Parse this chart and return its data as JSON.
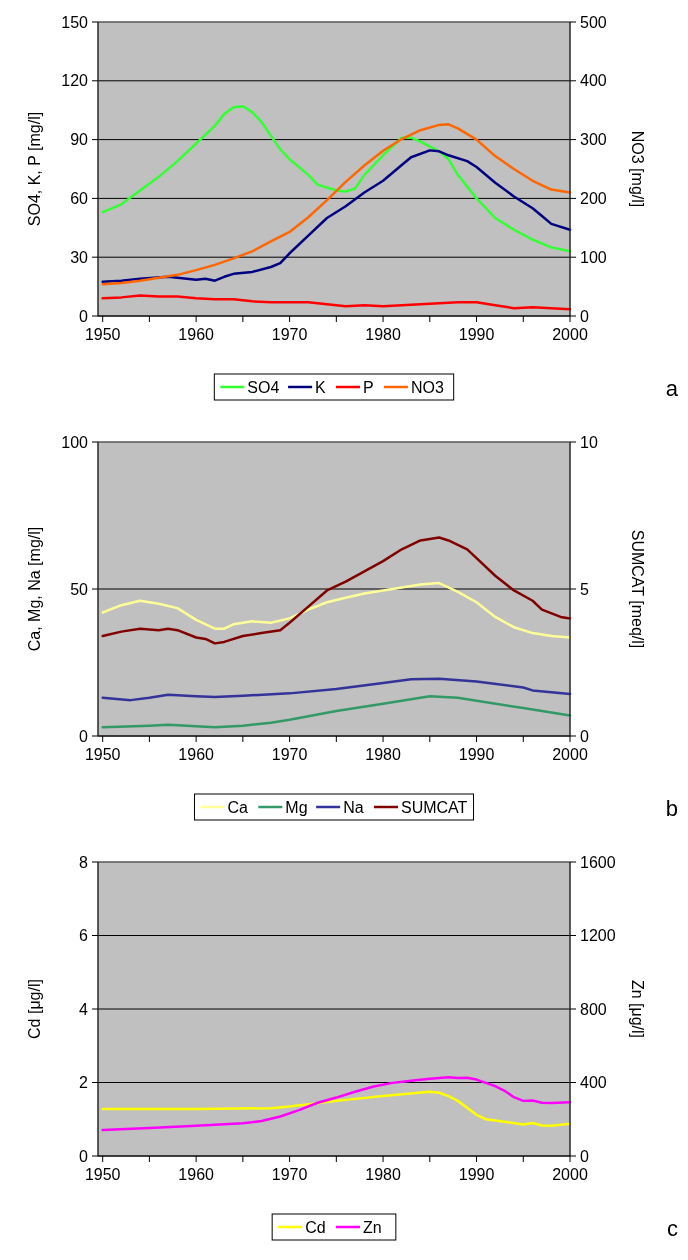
{
  "chart_data": [
    {
      "type": "line",
      "ylabel": "SO4, K, P [mg/l]",
      "y2label": "NO3 [mg/l]",
      "xlim": [
        1949.5,
        2000
      ],
      "xticks": [
        1950,
        {
          "value": 1955,
          "label": null
        },
        1960,
        {
          "value": 1965,
          "label": null
        },
        1970,
        {
          "value": 1975,
          "label": null
        },
        1980,
        {
          "value": 1985,
          "label": null
        },
        1990,
        {
          "value": 1995,
          "label": null
        },
        2000
      ],
      "ylim": [
        0,
        150
      ],
      "yticks": [
        0,
        30,
        60,
        90,
        120,
        150
      ],
      "y2lim": [
        0,
        500
      ],
      "y2ticks": [
        0,
        100,
        200,
        300,
        400,
        500
      ],
      "grid": "y",
      "legend": "bottom",
      "annotations": [
        "a"
      ],
      "series": [
        {
          "name": "SO4",
          "color": "#33ff33",
          "x": [
            1950,
            1952,
            1954,
            1956,
            1958,
            1960,
            1962,
            1963,
            1964,
            1965,
            1966,
            1967,
            1968,
            1969,
            1970,
            1972,
            1973,
            1975,
            1976,
            1977,
            1978,
            1980,
            1982,
            1983,
            1984,
            1986,
            1987,
            1988,
            1990,
            1992,
            1994,
            1996,
            1998,
            2000
          ],
          "values": [
            53,
            57,
            64,
            71,
            79,
            88,
            97,
            103,
            106.5,
            107,
            104,
            99,
            92,
            85,
            80,
            72,
            67,
            64,
            63.5,
            65,
            72,
            82,
            91,
            91,
            89,
            84,
            80,
            72,
            60,
            50,
            44,
            39,
            35,
            33
          ]
        },
        {
          "name": "K",
          "color": "#000080",
          "x": [
            1950,
            1952,
            1954,
            1957,
            1958,
            1960,
            1961,
            1962,
            1963,
            1964,
            1966,
            1968,
            1969,
            1970,
            1972,
            1974,
            1976,
            1978,
            1980,
            1982,
            1983,
            1985,
            1986,
            1987,
            1989,
            1990,
            1992,
            1994,
            1996,
            1997,
            1998,
            2000
          ],
          "values": [
            17.5,
            18,
            19,
            20,
            19.5,
            18.5,
            19,
            18,
            20,
            21.5,
            22.5,
            25,
            27,
            32,
            41,
            50,
            56,
            63,
            69,
            77,
            81,
            84.5,
            84,
            82,
            79,
            76,
            68,
            61,
            55,
            51,
            47,
            44
          ]
        },
        {
          "name": "P",
          "color": "#ff0000",
          "x": [
            1950,
            1952,
            1954,
            1956,
            1958,
            1960,
            1962,
            1964,
            1966,
            1968,
            1970,
            1972,
            1974,
            1976,
            1978,
            1980,
            1982,
            1984,
            1986,
            1988,
            1990,
            1992,
            1994,
            1996,
            1998,
            2000
          ],
          "values": [
            9,
            9.5,
            10.5,
            10,
            10,
            9,
            8.5,
            8.5,
            7.5,
            7,
            7,
            7,
            6,
            5,
            5.5,
            5,
            5.5,
            6,
            6.5,
            7,
            7,
            5.5,
            4,
            4.5,
            4,
            3.5
          ]
        },
        {
          "name": "NO3",
          "color": "#ff6600",
          "axis": "y2",
          "x": [
            1950,
            1952,
            1954,
            1956,
            1958,
            1960,
            1962,
            1964,
            1966,
            1968,
            1970,
            1972,
            1974,
            1976,
            1978,
            1980,
            1982,
            1984,
            1986,
            1987,
            1988,
            1990,
            1992,
            1994,
            1996,
            1998,
            2000
          ],
          "values": [
            54,
            56,
            60,
            65,
            70,
            78,
            87,
            98,
            110,
            127,
            143,
            168,
            197,
            228,
            256,
            281,
            301,
            316,
            325,
            326,
            319,
            300,
            272,
            250,
            230,
            215,
            210
          ]
        }
      ]
    },
    {
      "type": "line",
      "ylabel": "Ca, Mg, Na [mg/l]",
      "y2label": "SUMCAT [meq/l]",
      "xlim": [
        1949.5,
        2000
      ],
      "xticks": [
        1950,
        {
          "value": 1955,
          "label": null
        },
        1960,
        {
          "value": 1965,
          "label": null
        },
        1970,
        {
          "value": 1975,
          "label": null
        },
        1980,
        {
          "value": 1985,
          "label": null
        },
        1990,
        {
          "value": 1995,
          "label": null
        },
        2000
      ],
      "ylim": [
        0,
        100
      ],
      "yticks": [
        0,
        50,
        100
      ],
      "y2lim": [
        0,
        10
      ],
      "y2ticks": [
        0,
        5,
        10
      ],
      "grid": "y",
      "legend": "bottom",
      "annotations": [
        "b"
      ],
      "series": [
        {
          "name": "Ca",
          "color": "#ffff99",
          "x": [
            1950,
            1952,
            1954,
            1956,
            1958,
            1960,
            1962,
            1963,
            1964,
            1966,
            1968,
            1970,
            1972,
            1974,
            1976,
            1978,
            1980,
            1982,
            1984,
            1986,
            1988,
            1990,
            1992,
            1994,
            1996,
            1998,
            2000
          ],
          "values": [
            42,
            44.5,
            46,
            45,
            43.5,
            39.5,
            36.5,
            36.5,
            38,
            39,
            38.5,
            40,
            43,
            45.5,
            47,
            48.5,
            49.5,
            50.5,
            51.5,
            52,
            49,
            45.5,
            40.5,
            37,
            35,
            34,
            33.5
          ]
        },
        {
          "name": "Mg",
          "color": "#339966",
          "x": [
            1950,
            1955,
            1957,
            1960,
            1962,
            1965,
            1968,
            1970,
            1975,
            1980,
            1985,
            1988,
            1990,
            1995,
            2000
          ],
          "values": [
            3,
            3.5,
            3.8,
            3.3,
            3,
            3.5,
            4.5,
            5.5,
            8.5,
            11,
            13.5,
            13,
            12,
            9.5,
            7
          ]
        },
        {
          "name": "Na",
          "color": "#333399",
          "x": [
            1950,
            1953,
            1955,
            1957,
            1960,
            1962,
            1965,
            1970,
            1975,
            1980,
            1983,
            1986,
            1990,
            1995,
            1996,
            2000
          ],
          "values": [
            13,
            12.2,
            13,
            14,
            13.5,
            13.3,
            13.7,
            14.5,
            16,
            18,
            19.3,
            19.5,
            18.5,
            16.5,
            15.5,
            14.3
          ]
        },
        {
          "name": "SUMCAT",
          "color": "#800000",
          "axis": "y2",
          "x": [
            1950,
            1952,
            1954,
            1956,
            1957,
            1958,
            1960,
            1961,
            1962,
            1963,
            1965,
            1967,
            1969,
            1970,
            1972,
            1974,
            1976,
            1978,
            1980,
            1982,
            1984,
            1986,
            1987,
            1989,
            1990,
            1992,
            1994,
            1996,
            1997,
            1999,
            2000
          ],
          "values": [
            3.4,
            3.55,
            3.65,
            3.6,
            3.65,
            3.6,
            3.35,
            3.3,
            3.15,
            3.2,
            3.4,
            3.5,
            3.6,
            3.85,
            4.4,
            4.95,
            5.25,
            5.6,
            5.95,
            6.35,
            6.65,
            6.75,
            6.65,
            6.35,
            6.05,
            5.45,
            4.95,
            4.6,
            4.3,
            4.05,
            4
          ]
        }
      ]
    },
    {
      "type": "line",
      "ylabel": "Cd [μg/l]",
      "y2label": "Zn [μg/l]",
      "xlim": [
        1949.5,
        2000
      ],
      "xticks": [
        1950,
        {
          "value": 1955,
          "label": null
        },
        1960,
        {
          "value": 1965,
          "label": null
        },
        1970,
        {
          "value": 1975,
          "label": null
        },
        1980,
        {
          "value": 1985,
          "label": null
        },
        1990,
        {
          "value": 1995,
          "label": null
        },
        2000
      ],
      "ylim": [
        0,
        8
      ],
      "yticks": [
        0,
        2,
        4,
        6,
        8
      ],
      "y2lim": [
        0,
        1600
      ],
      "y2ticks": [
        0,
        400,
        800,
        1200,
        1600
      ],
      "grid": "y",
      "legend": "bottom",
      "annotations": [
        "c"
      ],
      "series": [
        {
          "name": "Cd",
          "color": "#ffff00",
          "x": [
            1950,
            1960,
            1968,
            1970,
            1975,
            1980,
            1985,
            1986,
            1987,
            1988,
            1990,
            1991,
            1993,
            1995,
            1996,
            1997,
            1998,
            2000
          ],
          "values": [
            1.28,
            1.28,
            1.3,
            1.35,
            1.5,
            1.63,
            1.75,
            1.72,
            1.63,
            1.5,
            1.12,
            1,
            0.93,
            0.86,
            0.9,
            0.83,
            0.82,
            0.88
          ]
        },
        {
          "name": "Zn",
          "color": "#ff00ff",
          "axis": "y2",
          "x": [
            1950,
            1955,
            1960,
            1965,
            1967,
            1969,
            1971,
            1973,
            1975,
            1977,
            1979,
            1981,
            1983,
            1985,
            1987,
            1988,
            1989,
            1990,
            1992,
            1993,
            1994,
            1995,
            1996,
            1997,
            1998,
            2000
          ],
          "values": [
            142,
            152,
            165,
            178,
            190,
            215,
            250,
            290,
            318,
            350,
            378,
            398,
            410,
            420,
            428,
            424,
            426,
            416,
            380,
            355,
            320,
            300,
            302,
            290,
            288,
            292
          ]
        }
      ]
    }
  ]
}
